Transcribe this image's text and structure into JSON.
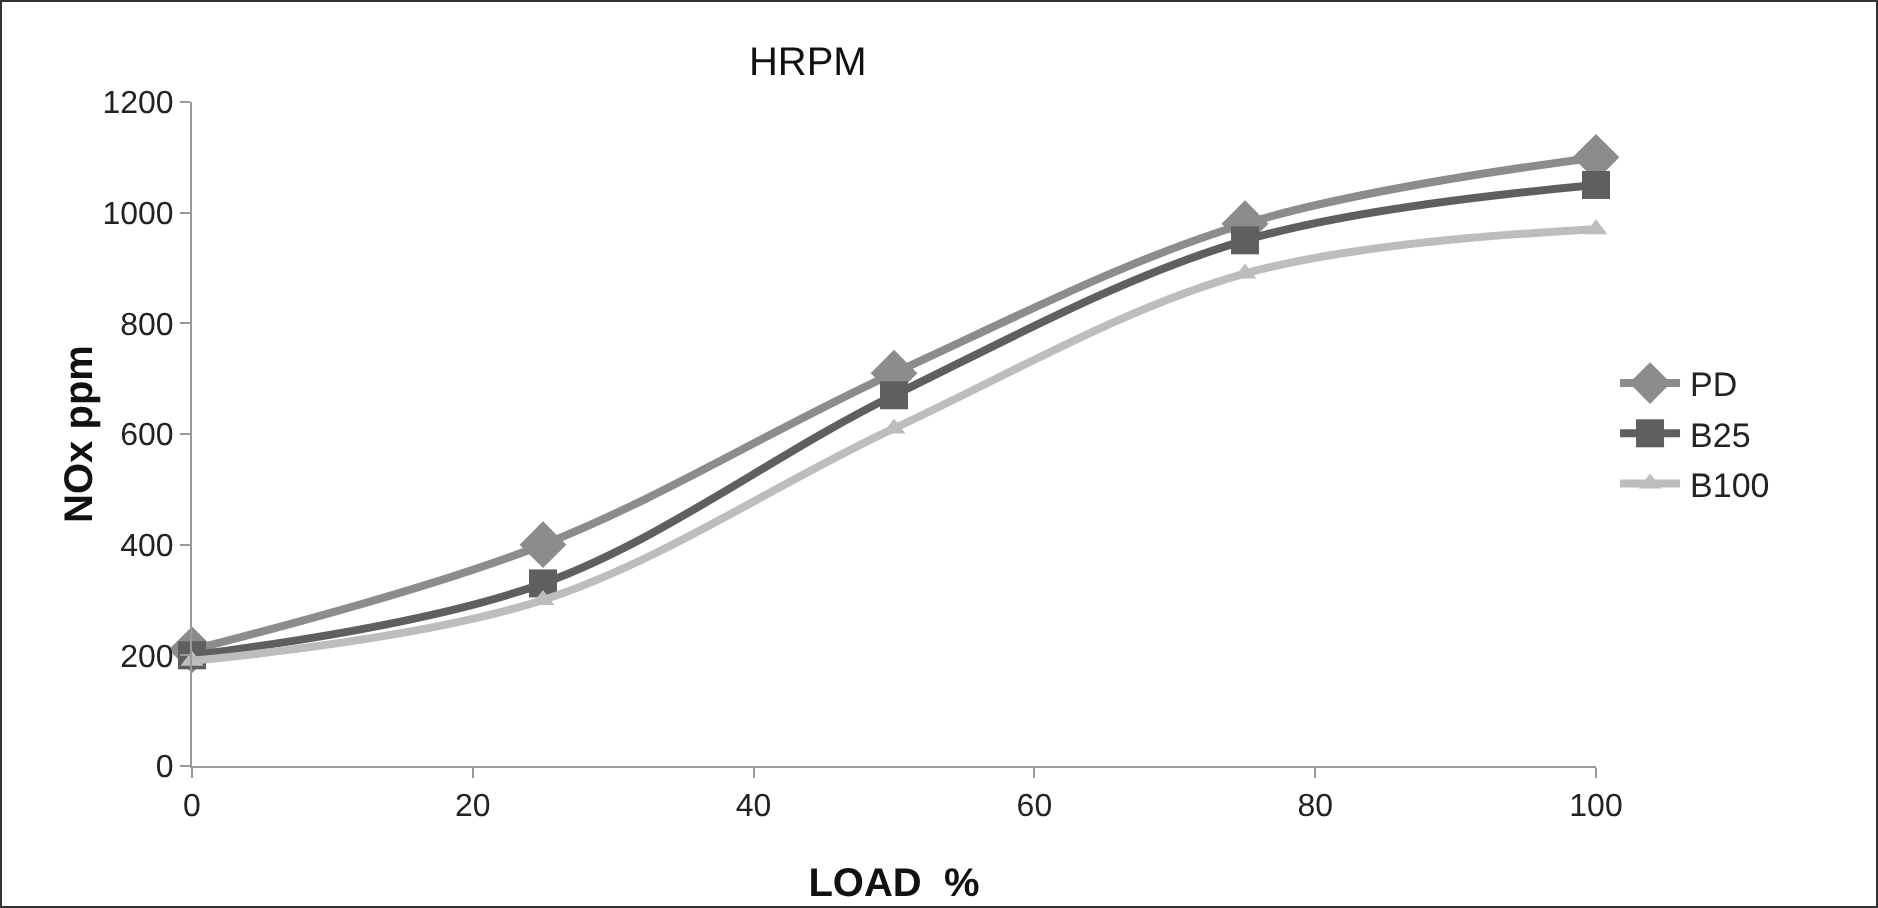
{
  "chart_data": {
    "type": "line",
    "title": "HRPM",
    "xlabel": "LOAD  %",
    "ylabel": "NOx ppm",
    "x": [
      0,
      25,
      50,
      75,
      100
    ],
    "series": [
      {
        "name": "PD",
        "color": "#8c8c8c",
        "marker": "diamond",
        "values": [
          210,
          400,
          710,
          980,
          1100
        ]
      },
      {
        "name": "B25",
        "color": "#5f5f5f",
        "marker": "square",
        "values": [
          200,
          330,
          670,
          950,
          1050
        ]
      },
      {
        "name": "B100",
        "color": "#bdbdbd",
        "marker": "triangle",
        "values": [
          190,
          300,
          610,
          890,
          970
        ]
      }
    ],
    "xlim": [
      0,
      100
    ],
    "xticks": [
      0,
      20,
      40,
      60,
      80,
      100
    ],
    "ylim": [
      0,
      1200
    ],
    "yticks": [
      0,
      200,
      400,
      600,
      800,
      1000,
      1200
    ],
    "grid": false,
    "legend": "right",
    "line_style": "solid"
  }
}
